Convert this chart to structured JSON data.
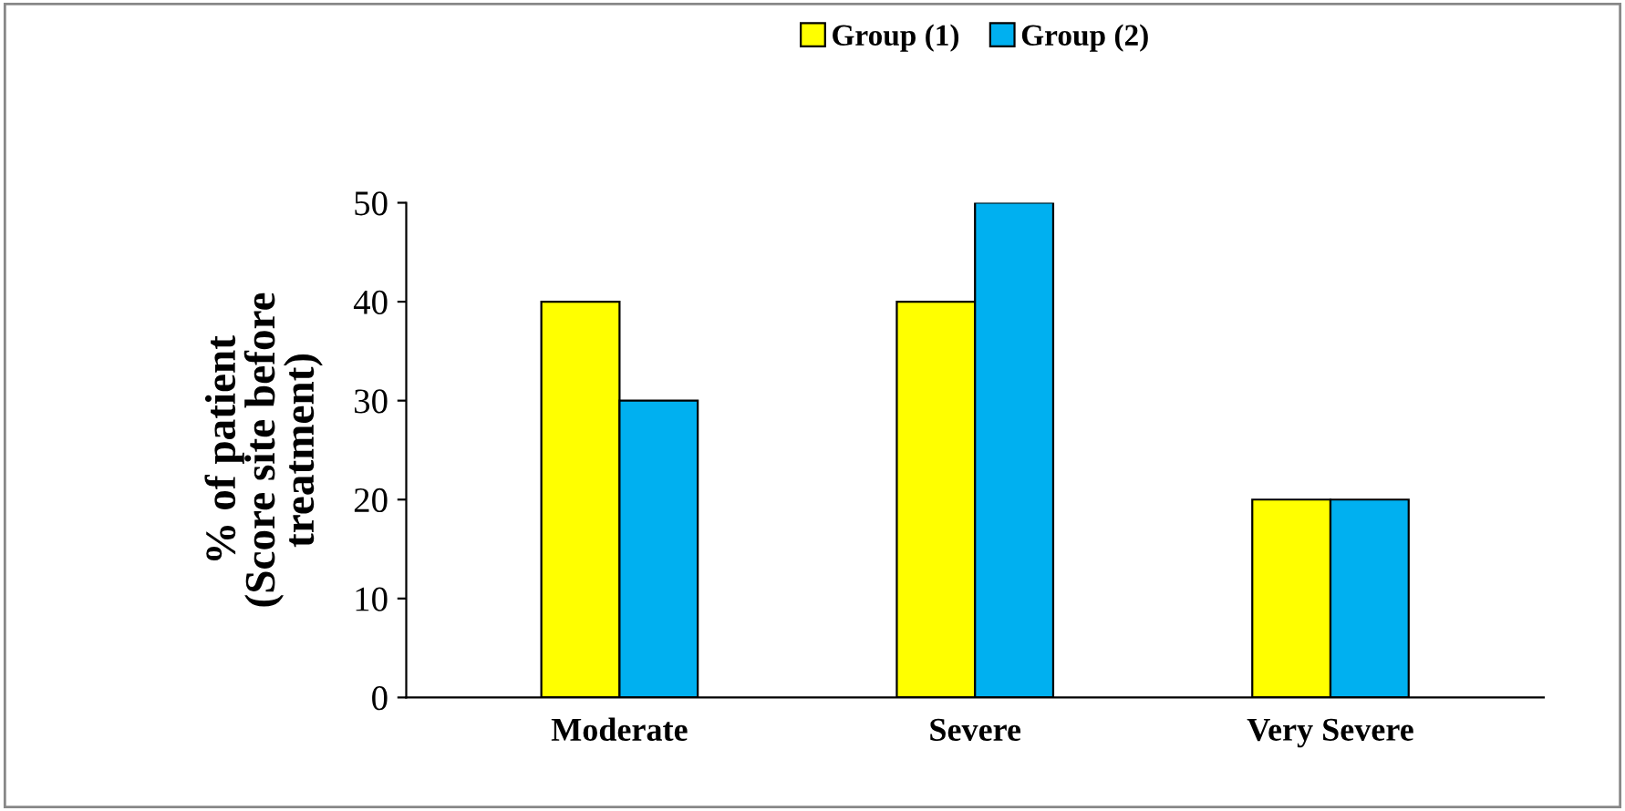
{
  "chart_data": {
    "type": "bar",
    "categories": [
      "Moderate",
      "Severe",
      "Very Severe"
    ],
    "series": [
      {
        "name": "Group (1)",
        "color": "#ffff00",
        "values": [
          40,
          40,
          20
        ]
      },
      {
        "name": "Group (2)",
        "color": "#00b0f0",
        "values": [
          30,
          50,
          20
        ]
      }
    ],
    "ylabel": "% of patient\n(Score site before\ntreatment)",
    "ylim": [
      0,
      50
    ],
    "yticks": [
      0,
      10,
      20,
      30,
      40,
      50
    ],
    "legend": "top",
    "grid": false
  }
}
